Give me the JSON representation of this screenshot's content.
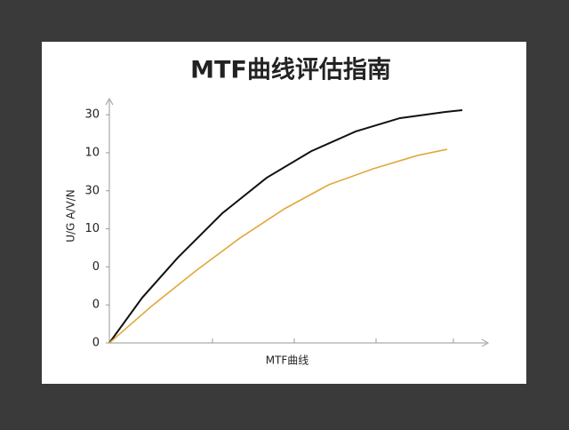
{
  "chart_data": {
    "type": "line",
    "title": "MTF曲线评估指南",
    "x_label": "MTF曲线",
    "y_label": "U/G A/V/N",
    "xlim": [
      0,
      100
    ],
    "ylim": [
      0,
      6.4
    ],
    "yticks": [
      0,
      {
        "value": 1,
        "label": "0"
      },
      {
        "value": 2,
        "label": "0"
      },
      {
        "value": 3,
        "label": "10"
      },
      {
        "value": 4,
        "label": "30"
      },
      {
        "value": 5,
        "label": "10"
      },
      {
        "value": 6,
        "label": "30"
      }
    ],
    "series": [
      {
        "color": "#111111",
        "x": [
          0,
          8.7,
          18.1,
          29.9,
          41.6,
          53.4,
          65.2,
          76.9,
          88.7,
          93.4
        ],
        "values": [
          0,
          1.19,
          2.24,
          3.41,
          4.34,
          5.04,
          5.56,
          5.91,
          6.07,
          6.12
        ]
      },
      {
        "color": "#e0a83a",
        "x": [
          0,
          11.1,
          22.8,
          34.6,
          46.4,
          58.1,
          69.9,
          81.6,
          89.4
        ],
        "values": [
          0,
          0.96,
          1.89,
          2.76,
          3.53,
          4.16,
          4.58,
          4.93,
          5.09
        ]
      }
    ]
  }
}
